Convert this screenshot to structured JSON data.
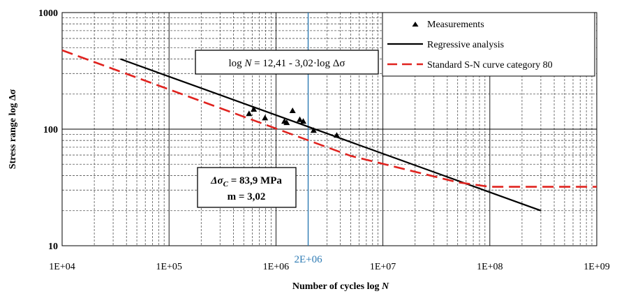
{
  "chart_data": {
    "type": "scatter",
    "x_scale": "log",
    "y_scale": "log",
    "xlim": [
      10000,
      1000000000
    ],
    "ylim": [
      10,
      1000
    ],
    "grid": "major and minor (dashed minor)",
    "xlabel_prefix": "Number of cycles log ",
    "xlabel_var": "N",
    "ylabel": "Stress range log Δσ",
    "x_ticks": [
      {
        "value": 10000,
        "label": "1E+04"
      },
      {
        "value": 100000,
        "label": "1E+05"
      },
      {
        "value": 1000000,
        "label": "1E+06"
      },
      {
        "value": 10000000,
        "label": "1E+07"
      },
      {
        "value": 100000000,
        "label": "1E+08"
      },
      {
        "value": 1000000000,
        "label": "1E+09"
      }
    ],
    "y_ticks": [
      {
        "value": 10,
        "label": "10"
      },
      {
        "value": 100,
        "label": "100"
      },
      {
        "value": 1000,
        "label": "1000"
      }
    ],
    "reference_line": {
      "x": 2000000,
      "label": "2E+06",
      "color": "#2e7bb4"
    },
    "series": [
      {
        "name": "Measurements",
        "kind": "points",
        "marker": "triangle",
        "color": "#000000",
        "points": [
          [
            560000,
            135
          ],
          [
            620000,
            147
          ],
          [
            790000,
            124
          ],
          [
            1200000,
            116
          ],
          [
            1260000,
            113
          ],
          [
            1430000,
            143
          ],
          [
            1670000,
            120
          ],
          [
            1800000,
            116
          ],
          [
            2250000,
            97
          ],
          [
            3700000,
            88
          ]
        ]
      },
      {
        "name": "Regressive analysis",
        "kind": "line",
        "color": "#000000",
        "dash": "solid",
        "points": [
          [
            35000,
            400
          ],
          [
            300000000,
            20
          ]
        ]
      },
      {
        "name": "Standard S-N curve category 80",
        "kind": "line",
        "color": "#e0231f",
        "dash": "dashed",
        "points": [
          [
            10000,
            475
          ],
          [
            5000000,
            59
          ],
          [
            50000000,
            35
          ],
          [
            100000000,
            32
          ],
          [
            1000000000,
            32
          ]
        ]
      }
    ],
    "annotations": {
      "equation": {
        "prefix": "log ",
        "var": "N",
        "text": " = 12,41 - 3,02·log Δσ"
      },
      "params": {
        "line1_symbol": "Δσ",
        "line1_sub": "C",
        "line1_value": " = 83,9 MPa",
        "line2": "m = 3,02"
      }
    },
    "legend_position": "top-right"
  }
}
